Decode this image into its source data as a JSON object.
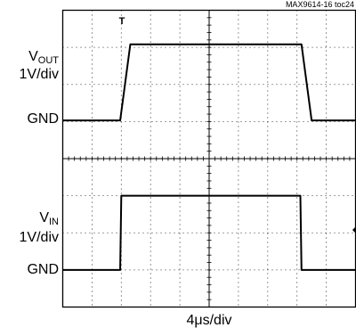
{
  "figure_id": "MAX9614-16 toc24",
  "chart_data": {
    "type": "line",
    "xlabel": "4μs/div",
    "divisions": {
      "x": 10,
      "y": 8
    },
    "trigger_marker": "T",
    "channels": [
      {
        "name_main": "V",
        "name_sub": "OUT",
        "scale": "1V/div",
        "ground_label": "GND",
        "x": [
          0,
          2.55,
          3.0,
          10.6,
          11.05,
          13
        ],
        "y": [
          0,
          0,
          2.05,
          2.05,
          0,
          0
        ]
      },
      {
        "name_main": "V",
        "name_sub": "IN",
        "scale": "1V/div",
        "ground_label": "GND",
        "x": [
          0,
          2.55,
          2.6,
          10.55,
          10.6,
          13
        ],
        "y": [
          0,
          0,
          2.0,
          2.0,
          0,
          0
        ]
      }
    ]
  }
}
